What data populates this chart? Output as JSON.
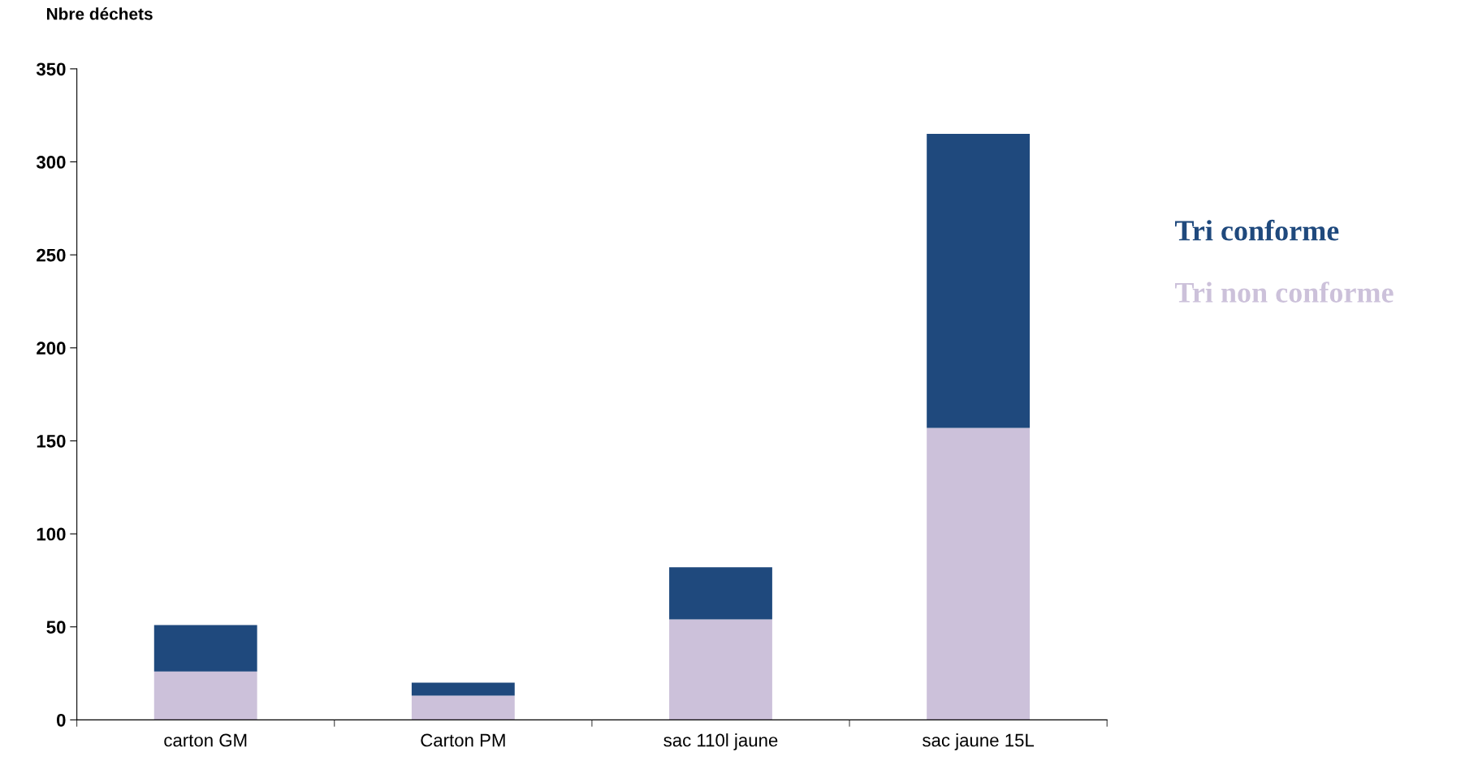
{
  "chart_data": {
    "type": "bar",
    "stacked": true,
    "ylabel": "Nbre déchets",
    "categories": [
      "carton GM",
      "Carton PM",
      "sac 110l jaune",
      "sac jaune 15L"
    ],
    "series": [
      {
        "name": "Tri non conforme",
        "color": "#ccc1da",
        "values": [
          26,
          13,
          54,
          157
        ]
      },
      {
        "name": "Tri conforme",
        "color": "#1f497d",
        "values": [
          25,
          7,
          28,
          158
        ]
      }
    ],
    "ylim": [
      0,
      350
    ],
    "yticks": [
      0,
      50,
      100,
      150,
      200,
      250,
      300,
      350
    ],
    "grid": false,
    "legend": "right"
  }
}
